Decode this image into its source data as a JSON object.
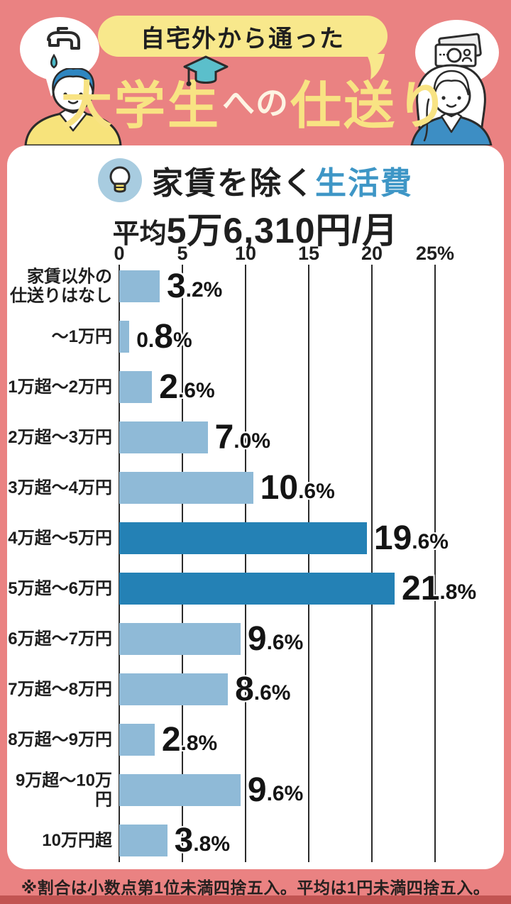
{
  "header": {
    "banner_label": "自宅外から通った",
    "title_part1": "大学生",
    "title_part2": "への",
    "title_part3": "仕送り"
  },
  "card": {
    "subject_dark": "家賃を除く",
    "subject_blue": "生活費",
    "average_prefix": "平均",
    "average_value": "5万6,310円/月"
  },
  "chart_data": {
    "type": "bar",
    "orientation": "horizontal",
    "title": "家賃を除く生活費",
    "subtitle": "平均5万6,310円/月",
    "unit": "%",
    "xlim": [
      0,
      25
    ],
    "x_ticks": [
      {
        "value": 0,
        "label": "0"
      },
      {
        "value": 5,
        "label": "5"
      },
      {
        "value": 10,
        "label": "10"
      },
      {
        "value": 15,
        "label": "15"
      },
      {
        "value": 20,
        "label": "20"
      },
      {
        "value": 25,
        "label": "25%"
      }
    ],
    "categories": [
      "家賃以外の\n仕送りはなし",
      "〜1万円",
      "1万超〜2万円",
      "2万超〜3万円",
      "3万超〜4万円",
      "4万超〜5万円",
      "5万超〜6万円",
      "6万超〜7万円",
      "7万超〜8万円",
      "8万超〜9万円",
      "9万超〜10万円",
      "10万円超"
    ],
    "values": [
      3.2,
      0.8,
      2.6,
      7.0,
      10.6,
      19.6,
      21.8,
      9.6,
      8.6,
      2.8,
      9.6,
      3.8
    ],
    "highlight_indices": [
      5,
      6
    ],
    "bar_color": "#8FBAD7",
    "highlight_color": "#2481B5",
    "grid": true,
    "legend": false
  },
  "footer": {
    "note": "※割合は小数点第1位未満四捨五入。平均は1円未満四捨五入。"
  },
  "colors": {
    "background": "#EA8282",
    "banner_yellow": "#F8E88C",
    "title_yellow": "#F8E383",
    "blue_text": "#3E96C6",
    "dark_text": "#1F1F1F",
    "bottom_strip": "#C25452"
  },
  "icons": {
    "left_bubble": "faucet-icon",
    "right_bubble": "banknote-icon",
    "title": "graduation-cap-icon",
    "card_header": "lightbulb-icon"
  }
}
